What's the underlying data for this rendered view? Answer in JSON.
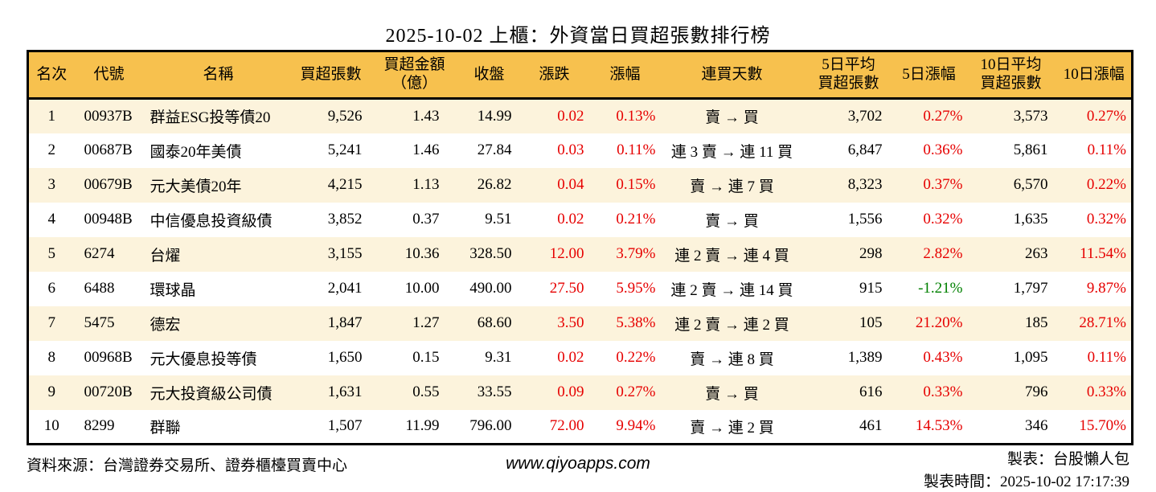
{
  "chart_data": {
    "type": "table",
    "title": "2025-10-02 上櫃：外資當日買超張數排行榜",
    "columns": [
      {
        "key": "rank",
        "label": "名次",
        "align": "center"
      },
      {
        "key": "code",
        "label": "代號",
        "align": "left"
      },
      {
        "key": "name",
        "label": "名稱",
        "align": "left"
      },
      {
        "key": "volume",
        "label": "買超張數",
        "align": "right"
      },
      {
        "key": "amount",
        "label": "買超金額\n（億）",
        "align": "right"
      },
      {
        "key": "close",
        "label": "收盤",
        "align": "right"
      },
      {
        "key": "change",
        "label": "漲跌",
        "align": "right"
      },
      {
        "key": "change_pct",
        "label": "漲幅",
        "align": "right"
      },
      {
        "key": "streak",
        "label": "連買天數",
        "align": "center"
      },
      {
        "key": "avg5",
        "label": "5日平均\n買超張數",
        "align": "right"
      },
      {
        "key": "pct5",
        "label": "5日漲幅",
        "align": "right"
      },
      {
        "key": "avg10",
        "label": "10日平均\n買超張數",
        "align": "right"
      },
      {
        "key": "pct10",
        "label": "10日漲幅",
        "align": "right"
      }
    ],
    "rows": [
      {
        "rank": "1",
        "code": "00937B",
        "name": "群益ESG投等債20",
        "volume": "9,526",
        "amount": "1.43",
        "close": "14.99",
        "change": "0.02",
        "change_color": "red",
        "change_pct": "0.13%",
        "change_pct_color": "red",
        "streak": "賣 → 買",
        "avg5": "3,702",
        "pct5": "0.27%",
        "pct5_color": "red",
        "avg10": "3,573",
        "pct10": "0.27%",
        "pct10_color": "red"
      },
      {
        "rank": "2",
        "code": "00687B",
        "name": "國泰20年美債",
        "volume": "5,241",
        "amount": "1.46",
        "close": "27.84",
        "change": "0.03",
        "change_color": "red",
        "change_pct": "0.11%",
        "change_pct_color": "red",
        "streak": "連 3 賣 → 連 11 買",
        "avg5": "6,847",
        "pct5": "0.36%",
        "pct5_color": "red",
        "avg10": "5,861",
        "pct10": "0.11%",
        "pct10_color": "red"
      },
      {
        "rank": "3",
        "code": "00679B",
        "name": "元大美債20年",
        "volume": "4,215",
        "amount": "1.13",
        "close": "26.82",
        "change": "0.04",
        "change_color": "red",
        "change_pct": "0.15%",
        "change_pct_color": "red",
        "streak": "賣 → 連 7 買",
        "avg5": "8,323",
        "pct5": "0.37%",
        "pct5_color": "red",
        "avg10": "6,570",
        "pct10": "0.22%",
        "pct10_color": "red"
      },
      {
        "rank": "4",
        "code": "00948B",
        "name": "中信優息投資級債",
        "volume": "3,852",
        "amount": "0.37",
        "close": "9.51",
        "change": "0.02",
        "change_color": "red",
        "change_pct": "0.21%",
        "change_pct_color": "red",
        "streak": "賣 → 買",
        "avg5": "1,556",
        "pct5": "0.32%",
        "pct5_color": "red",
        "avg10": "1,635",
        "pct10": "0.32%",
        "pct10_color": "red"
      },
      {
        "rank": "5",
        "code": "6274",
        "name": "台燿",
        "volume": "3,155",
        "amount": "10.36",
        "close": "328.50",
        "change": "12.00",
        "change_color": "red",
        "change_pct": "3.79%",
        "change_pct_color": "red",
        "streak": "連 2 賣 → 連 4 買",
        "avg5": "298",
        "pct5": "2.82%",
        "pct5_color": "red",
        "avg10": "263",
        "pct10": "11.54%",
        "pct10_color": "red"
      },
      {
        "rank": "6",
        "code": "6488",
        "name": "環球晶",
        "volume": "2,041",
        "amount": "10.00",
        "close": "490.00",
        "change": "27.50",
        "change_color": "red",
        "change_pct": "5.95%",
        "change_pct_color": "red",
        "streak": "連 2 賣 → 連 14 買",
        "avg5": "915",
        "pct5": "-1.21%",
        "pct5_color": "green",
        "avg10": "1,797",
        "pct10": "9.87%",
        "pct10_color": "red"
      },
      {
        "rank": "7",
        "code": "5475",
        "name": "德宏",
        "volume": "1,847",
        "amount": "1.27",
        "close": "68.60",
        "change": "3.50",
        "change_color": "red",
        "change_pct": "5.38%",
        "change_pct_color": "red",
        "streak": "連 2 賣 → 連 2 買",
        "avg5": "105",
        "pct5": "21.20%",
        "pct5_color": "red",
        "avg10": "185",
        "pct10": "28.71%",
        "pct10_color": "red"
      },
      {
        "rank": "8",
        "code": "00968B",
        "name": "元大優息投等債",
        "volume": "1,650",
        "amount": "0.15",
        "close": "9.31",
        "change": "0.02",
        "change_color": "red",
        "change_pct": "0.22%",
        "change_pct_color": "red",
        "streak": "賣 → 連 8 買",
        "avg5": "1,389",
        "pct5": "0.43%",
        "pct5_color": "red",
        "avg10": "1,095",
        "pct10": "0.11%",
        "pct10_color": "red"
      },
      {
        "rank": "9",
        "code": "00720B",
        "name": "元大投資級公司債",
        "volume": "1,631",
        "amount": "0.55",
        "close": "33.55",
        "change": "0.09",
        "change_color": "red",
        "change_pct": "0.27%",
        "change_pct_color": "red",
        "streak": "賣 → 買",
        "avg5": "616",
        "pct5": "0.33%",
        "pct5_color": "red",
        "avg10": "796",
        "pct10": "0.33%",
        "pct10_color": "red"
      },
      {
        "rank": "10",
        "code": "8299",
        "name": "群聯",
        "volume": "1,507",
        "amount": "11.99",
        "close": "796.00",
        "change": "72.00",
        "change_color": "red",
        "change_pct": "9.94%",
        "change_pct_color": "red",
        "streak": "賣 → 連 2 買",
        "avg5": "461",
        "pct5": "14.53%",
        "pct5_color": "red",
        "avg10": "346",
        "pct10": "15.70%",
        "pct10_color": "red"
      }
    ]
  },
  "footer": {
    "source": "資料來源：台灣證券交易所、證券櫃檯買賣中心",
    "website": "www.qiyoapps.com",
    "maker": "製表：台股懶人包",
    "made_at": "製表時間：2025-10-02 17:17:39"
  },
  "colors": {
    "header_bg": "#F7C14E",
    "row_alt_bg": "#FCF3DC",
    "up": "#E60000",
    "down": "#008000",
    "border": "#000000"
  }
}
